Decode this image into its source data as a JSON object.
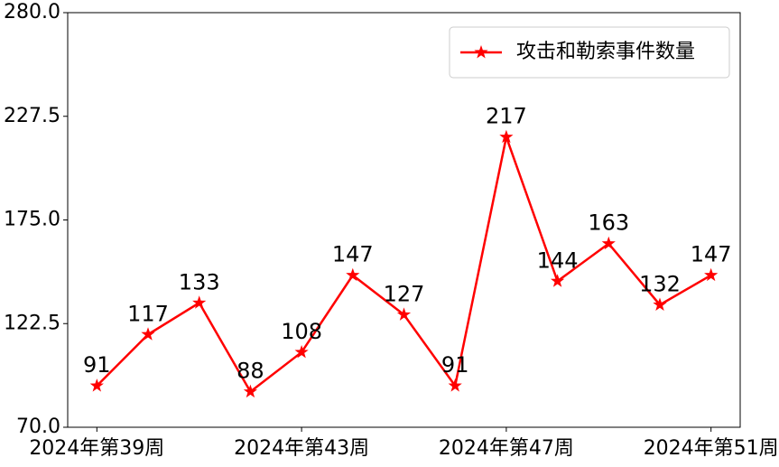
{
  "chart_data": {
    "type": "line",
    "categories": [
      "2024年第39周",
      null,
      null,
      null,
      "2024年第43周",
      null,
      null,
      null,
      "2024年第47周",
      null,
      null,
      null,
      "2024年第51周"
    ],
    "series": [
      {
        "name": "攻击和勒索事件数量",
        "color": "#ff0000",
        "values": [
          91,
          117,
          133,
          88,
          108,
          147,
          127,
          91,
          217,
          144,
          163,
          132,
          147
        ]
      }
    ],
    "ylim": [
      70,
      280
    ],
    "yticks": [
      {
        "value": 70,
        "label": "70.0"
      },
      122.5,
      {
        "value": 175,
        "label": "175.0"
      },
      227.5,
      {
        "value": 280,
        "label": "280.0"
      }
    ],
    "legend": "upper right",
    "grid": false
  }
}
